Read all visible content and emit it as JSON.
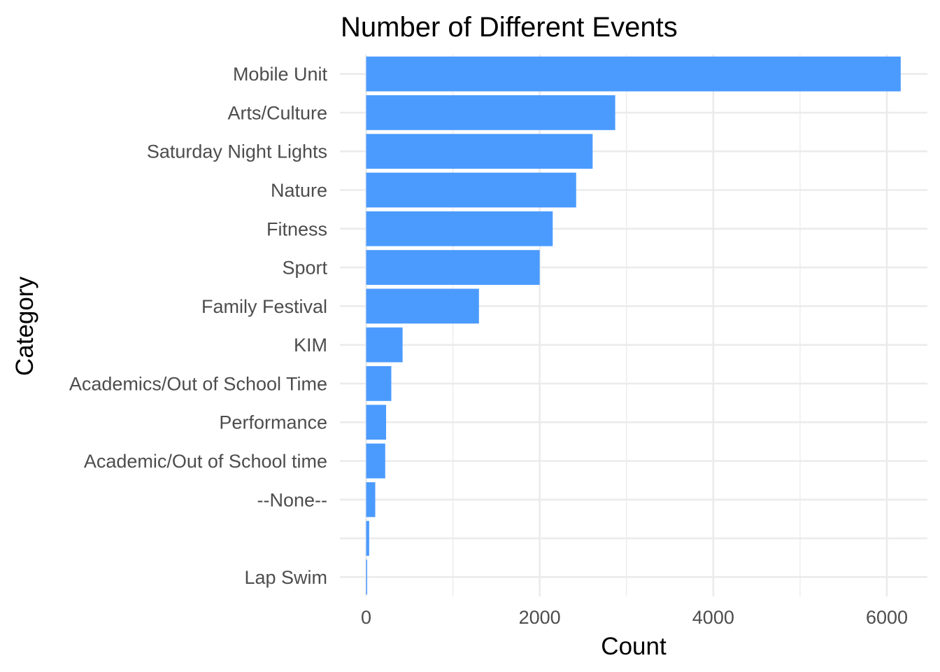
{
  "chart_data": {
    "type": "bar",
    "orientation": "horizontal",
    "title": "Number of Different Events",
    "xlabel": "Count",
    "ylabel": "Category",
    "xlim": [
      0,
      6450
    ],
    "x_ticks": [
      0,
      2000,
      4000,
      6000
    ],
    "grid": true,
    "bar_color": "#4b9bff",
    "categories": [
      "Mobile Unit",
      "Arts/Culture",
      "Saturday Night Lights",
      "Nature",
      "Fitness",
      "Sport",
      "Family Festival",
      "KIM",
      "Academics/Out of School Time",
      "Performance",
      "Academic/Out of School time",
      "--None--",
      "",
      "Lap Swim"
    ],
    "values": [
      6160,
      2870,
      2610,
      2420,
      2150,
      2000,
      1300,
      420,
      290,
      230,
      220,
      105,
      35,
      10
    ]
  }
}
